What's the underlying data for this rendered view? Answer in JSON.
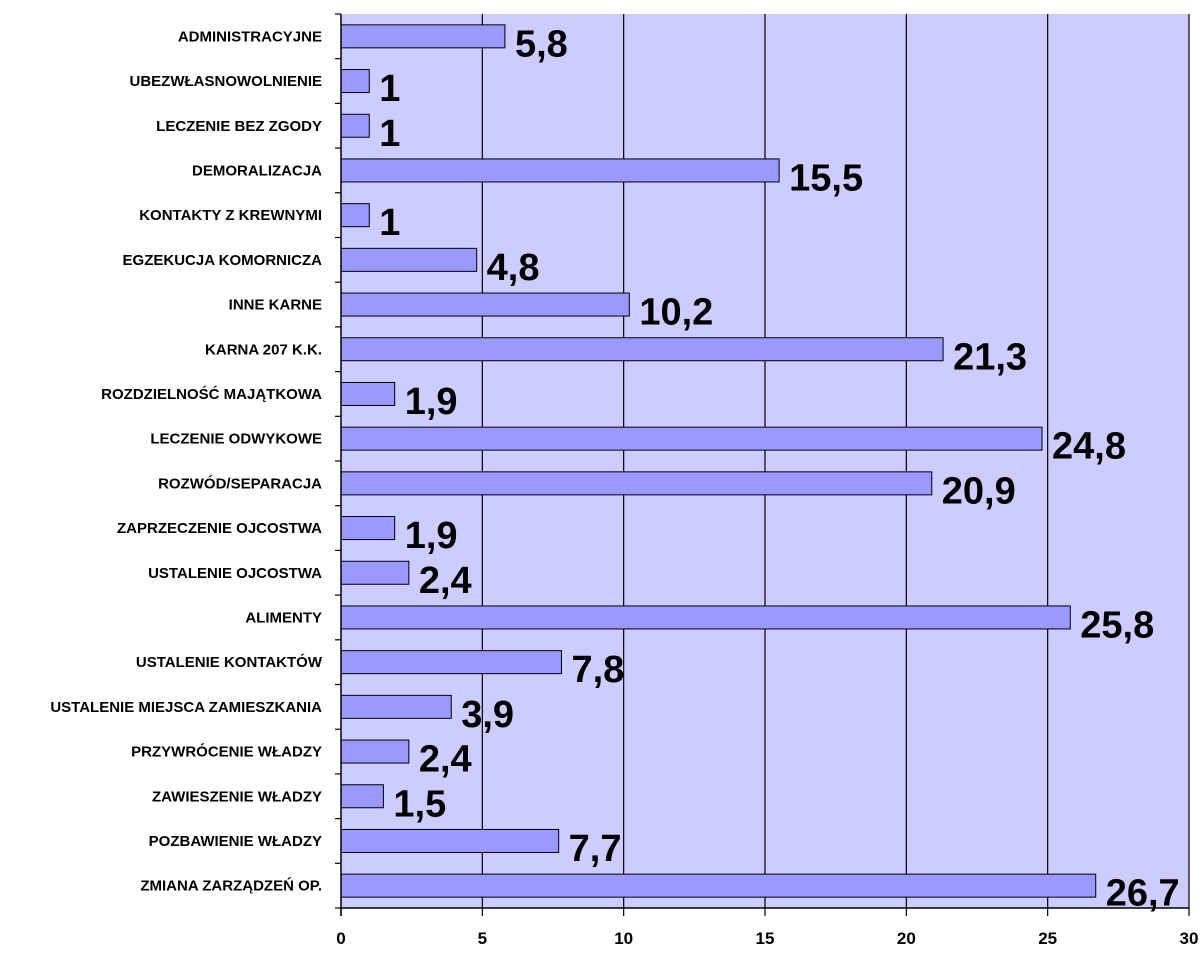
{
  "colors": {
    "plot_bg": "#ccccff",
    "bar_fill": "#9999ff",
    "bar_stroke": "#000000",
    "grid": "#000000"
  },
  "chart_data": {
    "type": "bar",
    "orientation": "horizontal",
    "title": "",
    "xlabel": "",
    "ylabel": "",
    "xlim": [
      0,
      30
    ],
    "ticks": [
      0,
      5,
      10,
      15,
      20,
      25,
      30
    ],
    "tick_labels": [
      "0",
      "5",
      "10",
      "15",
      "20",
      "25",
      "30"
    ],
    "grid": true,
    "legend": "none",
    "categories": [
      "ADMINISTRACYJNE",
      "UBEZWŁASNOWOLNIENIE",
      "LECZENIE BEZ ZGODY",
      "DEMORALIZACJA",
      "KONTAKTY Z KREWNYMI",
      "EGZEKUCJA KOMORNICZA",
      "INNE KARNE",
      "KARNA 207 K.K.",
      "ROZDZIELNOŚĆ MAJĄTKOWA",
      "LECZENIE ODWYKOWE",
      "ROZWÓD/SEPARACJA",
      "ZAPRZECZENIE OJCOSTWA",
      "USTALENIE OJCOSTWA",
      "ALIMENTY",
      "USTALENIE KONTAKTÓW",
      "USTALENIE MIEJSCA ZAMIESZKANIA",
      "PRZYWRÓCENIE WŁADZY",
      "ZAWIESZENIE WŁADZY",
      "POZBAWIENIE WŁADZY",
      "ZMIANA ZARZĄDZEŃ OP."
    ],
    "values": [
      5.8,
      1,
      1,
      15.5,
      1,
      4.8,
      10.2,
      21.3,
      1.9,
      24.8,
      20.9,
      1.9,
      2.4,
      25.8,
      7.8,
      3.9,
      2.4,
      1.5,
      7.7,
      26.7
    ],
    "value_labels": [
      "5,8",
      "1",
      "1",
      "15,5",
      "1",
      "4,8",
      "10,2",
      "21,3",
      "1,9",
      "24,8",
      "20,9",
      "1,9",
      "2,4",
      "25,8",
      "7,8",
      "3,9",
      "2,4",
      "1,5",
      "7,7",
      "26,7"
    ]
  }
}
